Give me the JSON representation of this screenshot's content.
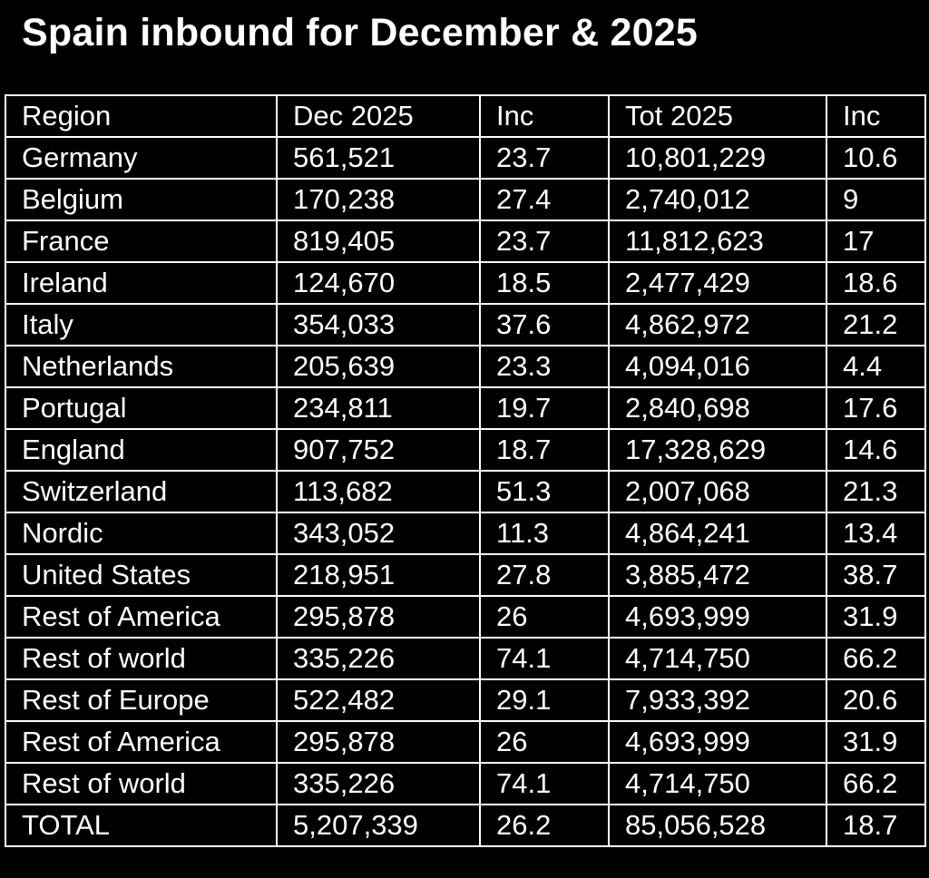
{
  "title": "Spain inbound for December & 2025",
  "table": {
    "headers": [
      "Region",
      "Dec 2025",
      "Inc",
      "Tot 2025",
      "Inc"
    ],
    "rows": [
      [
        "Germany",
        "561,521",
        "23.7",
        "10,801,229",
        "10.6"
      ],
      [
        "Belgium",
        "170,238",
        "27.4",
        "2,740,012",
        "9"
      ],
      [
        "France",
        "819,405",
        "23.7",
        "11,812,623",
        "17"
      ],
      [
        "Ireland",
        "124,670",
        "18.5",
        "2,477,429",
        "18.6"
      ],
      [
        "Italy",
        "354,033",
        "37.6",
        "4,862,972",
        "21.2"
      ],
      [
        "Netherlands",
        "205,639",
        "23.3",
        "4,094,016",
        "4.4"
      ],
      [
        "Portugal",
        "234,811",
        "19.7",
        "2,840,698",
        "17.6"
      ],
      [
        "England",
        "907,752",
        "18.7",
        "17,328,629",
        "14.6"
      ],
      [
        "Switzerland",
        "113,682",
        "51.3",
        "2,007,068",
        "21.3"
      ],
      [
        "Nordic",
        "343,052",
        "11.3",
        "4,864,241",
        "13.4"
      ],
      [
        "United States",
        "218,951",
        "27.8",
        "3,885,472",
        "38.7"
      ],
      [
        "Rest of America",
        "295,878",
        "26",
        "4,693,999",
        "31.9"
      ],
      [
        "Rest of world",
        "335,226",
        "74.1",
        "4,714,750",
        "66.2"
      ],
      [
        "Rest of Europe",
        "522,482",
        "29.1",
        "7,933,392",
        "20.6"
      ],
      [
        "Rest of America",
        "295,878",
        "26",
        "4,693,999",
        "31.9"
      ],
      [
        "Rest of world",
        "335,226",
        "74.1",
        "4,714,750",
        "66.2"
      ],
      [
        "TOTAL",
        "5,207,339",
        "26.2",
        "85,056,528",
        "18.7"
      ]
    ]
  },
  "colors": {
    "background": "#000000",
    "text": "#ffffff",
    "border": "#ffffff"
  }
}
